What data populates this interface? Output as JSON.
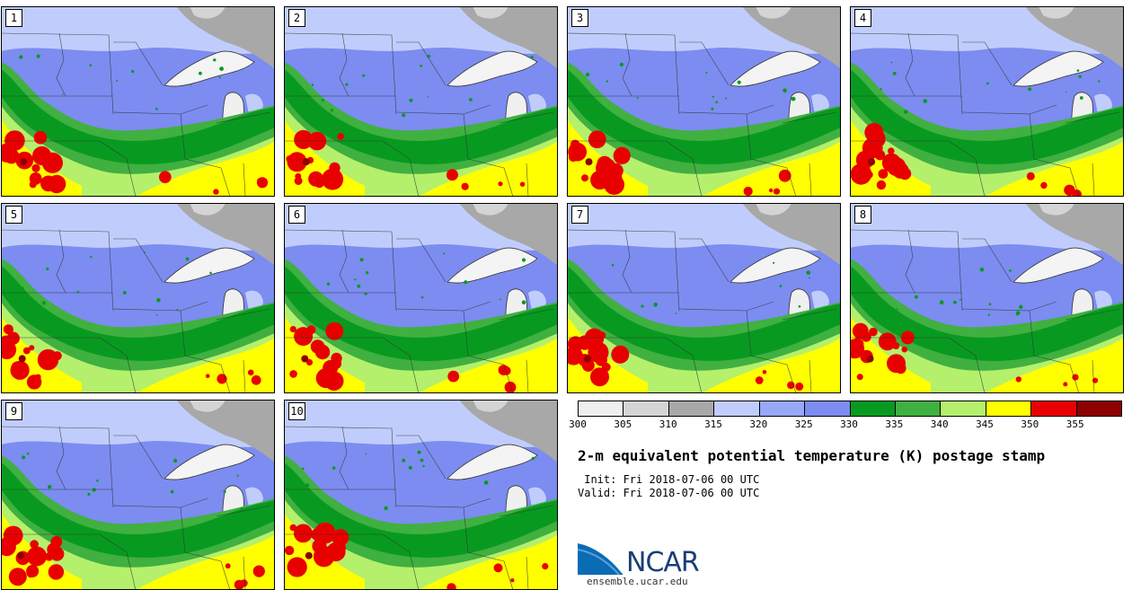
{
  "panels": [
    {
      "label": "1"
    },
    {
      "label": "2"
    },
    {
      "label": "3"
    },
    {
      "label": "4"
    },
    {
      "label": "5"
    },
    {
      "label": "6"
    },
    {
      "label": "7"
    },
    {
      "label": "8"
    },
    {
      "label": "9"
    },
    {
      "label": "10"
    }
  ],
  "legend": {
    "colors": [
      "#efefef",
      "#d4d4d4",
      "#a8a8a8",
      "#c0cdfc",
      "#98a8f8",
      "#7c8cf0",
      "#089a20",
      "#40b040",
      "#b4f06c",
      "#ffff00",
      "#e80000",
      "#8c0000"
    ],
    "tick_labels": [
      "300",
      "305",
      "310",
      "315",
      "320",
      "325",
      "330",
      "335",
      "340",
      "345",
      "350",
      "355"
    ]
  },
  "title": "2-m equivalent potential temperature (K) postage stamp",
  "init": " Init: Fri 2018-07-06 00 UTC",
  "valid": "Valid: Fri 2018-07-06 00 UTC",
  "logo": {
    "name": "NCAR",
    "url": "ensemble.ucar.edu"
  }
}
